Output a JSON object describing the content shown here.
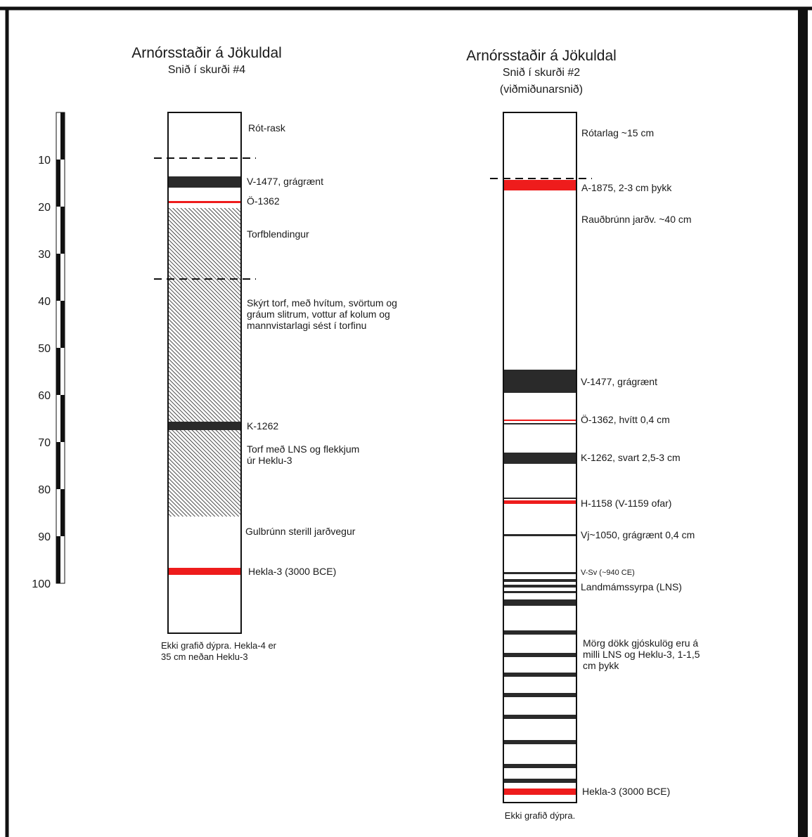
{
  "scale": {
    "ticks": [
      "10",
      "20",
      "30",
      "40",
      "50",
      "60",
      "70",
      "80",
      "90",
      "100"
    ]
  },
  "left": {
    "title": "Arnórsstaðir á Jökuldal",
    "subtitle": "Snið í skurði #4",
    "labels": {
      "root": "Rót-rask",
      "v1477": "V-1477, grágrænt",
      "o1362": "Ö-1362",
      "torfblend": "Torfblendingur",
      "skyrt_1": "Skýrt torf, með hvítum, svörtum og",
      "skyrt_2": "gráum slitrum, vottur af kolum og",
      "skyrt_3": "mannvistarlagi sést í torfinu",
      "k1262": "K-1262",
      "torf_lns_1": "Torf með LNS og flekkjum",
      "torf_lns_2": "úr Heklu-3",
      "gulbrunn": "Gulbrúnn sterill jarðvegur",
      "hekla3": "Hekla-3 (3000 BCE)"
    },
    "note_1": "Ekki grafið dýpra. Hekla-4 er",
    "note_2": "35 cm neðan Heklu-3"
  },
  "right": {
    "title": "Arnórsstaðir á Jökuldal",
    "subtitle": "Snið í skurði #2",
    "subtitle2": "(viðmiðunarsnið)",
    "labels": {
      "rotarlag": "Rótarlag ~15 cm",
      "a1875": "A-1875, 2-3 cm þykk",
      "raudbrunn": "Rauðbrúnn jarðv. ~40 cm",
      "v1477": "V-1477, grágrænt",
      "o1362": "Ö-1362, hvítt 0,4 cm",
      "k1262": "K-1262, svart 2,5-3 cm",
      "h1158": "H-1158 (V-1159 ofar)",
      "vj1050": "Vj~1050, grágrænt 0,4 cm",
      "vsv": "V-Sv (~940 CE)",
      "lns": "Landmámssyrpa (LNS)",
      "morg_1": "Mörg dökk gjóskulög eru á",
      "morg_2": "milli LNS og Heklu-3, 1-1,5",
      "morg_3": "cm þykk",
      "hekla3": "Hekla-3 (3000 BCE)"
    },
    "note": "Ekki grafið dýpra."
  },
  "colors": {
    "black_layer": "#2a2a2a",
    "red_layer": "#ee1c1c",
    "frame": "#111111"
  }
}
